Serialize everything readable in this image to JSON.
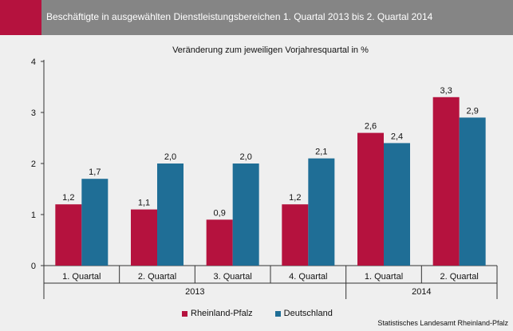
{
  "header": {
    "title": "Beschäftigte in ausgewählten Dienstleistungsbereichen 1. Quartal 2013 bis 2. Quartal 2014"
  },
  "source": "Statistisches Landesamt Rheinland-Pfalz",
  "colors": {
    "header_bg": "#858585",
    "accent": "#b5123e",
    "rheinland_pfalz": "#b5123e",
    "deutschland": "#1f6e96"
  },
  "chart_data": {
    "type": "bar",
    "title": "",
    "subtitle": "Veränderung zum jeweiligen Vorjahresquartal in %",
    "xlabel": "",
    "ylabel": "",
    "ylim": [
      0,
      4
    ],
    "yticks": [
      0,
      1,
      2,
      3,
      4
    ],
    "grid": false,
    "legend_position": "bottom",
    "categories": [
      "1. Quartal",
      "2. Quartal",
      "3. Quartal",
      "4. Quartal",
      "1. Quartal",
      "2. Quartal"
    ],
    "groups": [
      {
        "label": "2013",
        "span": [
          0,
          3
        ]
      },
      {
        "label": "2014",
        "span": [
          4,
          5
        ]
      }
    ],
    "series": [
      {
        "name": "Rheinland-Pfalz",
        "color": "#b5123e",
        "values": [
          1.2,
          1.1,
          0.9,
          1.2,
          2.6,
          3.3
        ],
        "labels": [
          "1,2",
          "1,1",
          "0,9",
          "1,2",
          "2,6",
          "3,3"
        ]
      },
      {
        "name": "Deutschland",
        "color": "#1f6e96",
        "values": [
          1.7,
          2.0,
          2.0,
          2.1,
          2.4,
          2.9
        ],
        "labels": [
          "1,7",
          "2,0",
          "2,0",
          "2,1",
          "2,4",
          "2,9"
        ]
      }
    ]
  }
}
